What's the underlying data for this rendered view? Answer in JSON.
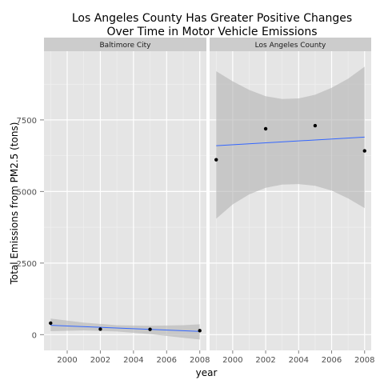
{
  "chart_data": {
    "type": "scatter",
    "title_lines": [
      "Los Angeles County Has Greater Positive Changes",
      "Over Time in Motor Vehicle Emissions"
    ],
    "xlabel": "year",
    "ylabel": "Total Emissions from PM2.5 (tons)",
    "xlim": [
      1998.6,
      2008.4
    ],
    "ylim": [
      -550,
      9900
    ],
    "x_ticks": [
      2000,
      2002,
      2004,
      2006,
      2008
    ],
    "y_ticks": [
      0,
      2500,
      5000,
      7500
    ],
    "grid": true,
    "panels": [
      {
        "name": "Baltimore City",
        "points": [
          {
            "x": 1999,
            "y": 403
          },
          {
            "x": 2002,
            "y": 193
          },
          {
            "x": 2005,
            "y": 185
          },
          {
            "x": 2008,
            "y": 139
          }
        ],
        "trend": {
          "y_start": 325,
          "y_end": 115
        },
        "band": [
          {
            "x": 1999,
            "lo": 120,
            "hi": 560
          },
          {
            "x": 2001,
            "lo": 150,
            "hi": 420
          },
          {
            "x": 2003,
            "lo": 110,
            "hi": 330
          },
          {
            "x": 2005,
            "lo": 20,
            "hi": 310
          },
          {
            "x": 2007,
            "lo": -110,
            "hi": 330
          },
          {
            "x": 2008,
            "lo": -170,
            "hi": 360
          }
        ]
      },
      {
        "name": "Los Angeles County",
        "points": [
          {
            "x": 1999,
            "y": 6110
          },
          {
            "x": 2002,
            "y": 7190
          },
          {
            "x": 2005,
            "y": 7300
          },
          {
            "x": 2008,
            "y": 6420
          }
        ],
        "trend": {
          "y_start": 6600,
          "y_end": 6900
        },
        "band": [
          {
            "x": 1999,
            "lo": 4050,
            "hi": 9200
          },
          {
            "x": 2000,
            "lo": 4550,
            "hi": 8850
          },
          {
            "x": 2001,
            "lo": 4900,
            "hi": 8550
          },
          {
            "x": 2002,
            "lo": 5130,
            "hi": 8330
          },
          {
            "x": 2003,
            "lo": 5240,
            "hi": 8230
          },
          {
            "x": 2004,
            "lo": 5260,
            "hi": 8250
          },
          {
            "x": 2005,
            "lo": 5200,
            "hi": 8380
          },
          {
            "x": 2006,
            "lo": 5030,
            "hi": 8620
          },
          {
            "x": 2007,
            "lo": 4760,
            "hi": 8940
          },
          {
            "x": 2008,
            "lo": 4420,
            "hi": 9360
          }
        ]
      }
    ],
    "colors": {
      "panel_bg": "#e5e5e5",
      "strip_bg": "#cccccc",
      "grid_major": "#ffffff",
      "grid_minor": "#f2f2f2",
      "band": "#b3b3b3",
      "trend_line": "#3366ff",
      "points": "#000000",
      "axis_text": "#4d4d4d"
    }
  }
}
